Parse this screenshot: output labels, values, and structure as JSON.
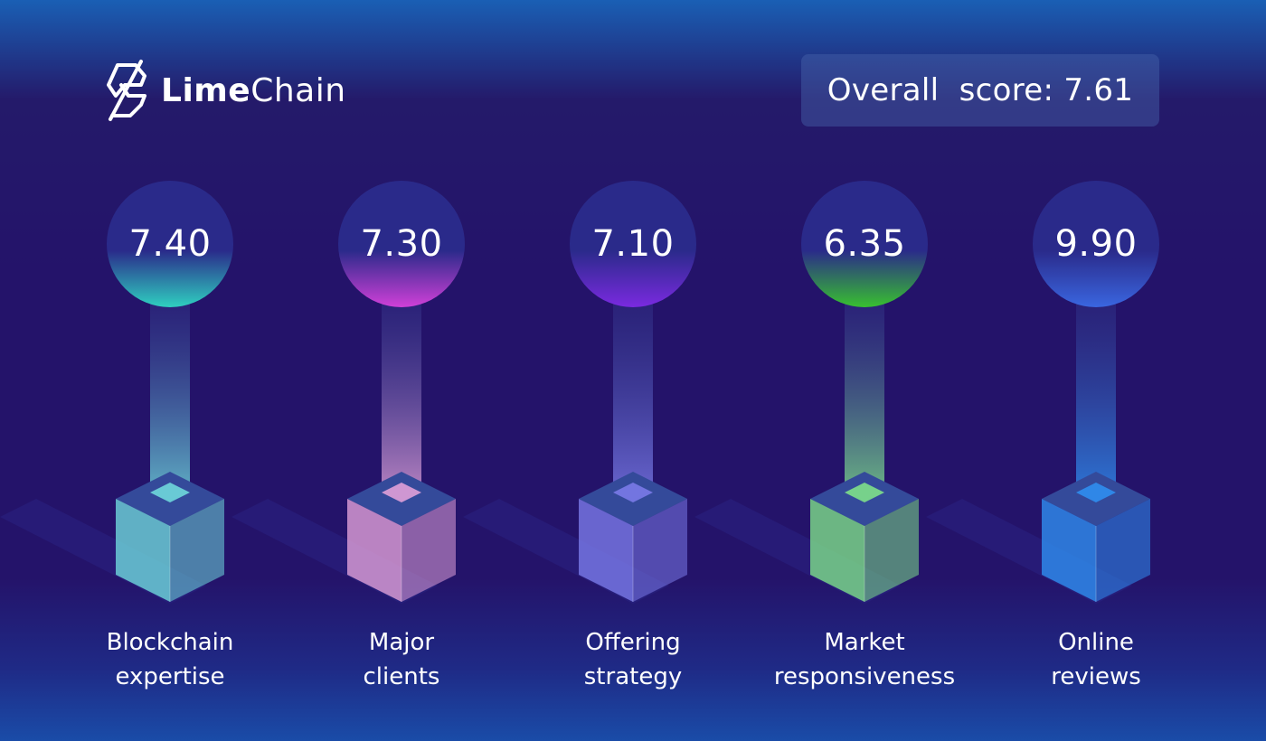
{
  "brand": {
    "name_bold": "Lime",
    "name_light": "Chain"
  },
  "overall": {
    "label": "Overall  score:",
    "value": "7.61"
  },
  "categories": [
    {
      "score": "7.40",
      "line1": "Blockchain",
      "line2": "expertise",
      "color": "#2fd0c0",
      "cube": "#6fd8dc"
    },
    {
      "score": "7.30",
      "line1": "Major",
      "line2": "clients",
      "color": "#d040d8",
      "cube": "#e0a0d8"
    },
    {
      "score": "7.10",
      "line1": "Offering",
      "line2": "strategy",
      "color": "#7a2ae0",
      "cube": "#7a7ae8"
    },
    {
      "score": "6.35",
      "line1": "Market",
      "line2": "responsiveness",
      "color": "#38c030",
      "cube": "#7ee08a"
    },
    {
      "score": "9.90",
      "line1": "Online",
      "line2": "reviews",
      "color": "#3a66e0",
      "cube": "#2f8ef0"
    }
  ]
}
